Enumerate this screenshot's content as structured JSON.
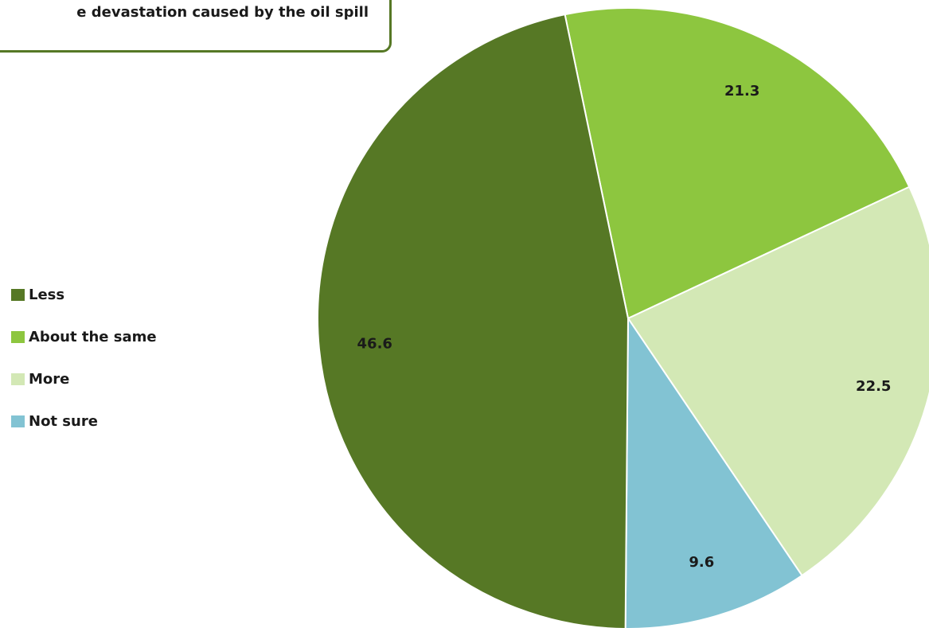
{
  "chart_data": {
    "type": "pie",
    "title": "e devastation caused by the oil spill",
    "categories": [
      "Less",
      "About the same",
      "More",
      "Not sure"
    ],
    "values": [
      46.6,
      21.3,
      22.5,
      9.6
    ],
    "data_labels": [
      "46.6",
      "21.3",
      "22.5",
      "9.6"
    ],
    "colors": [
      "#567825",
      "#8dc63f",
      "#d3e8b5",
      "#82c3d3"
    ],
    "legend_position": "left"
  }
}
